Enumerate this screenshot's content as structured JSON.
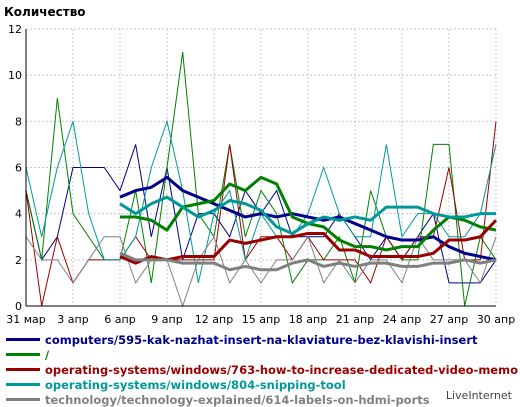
{
  "chart_data": {
    "type": "line",
    "ylabel": "Количество",
    "ylim": [
      0,
      12
    ],
    "yticks": [
      0,
      2,
      4,
      6,
      8,
      10,
      12
    ],
    "grid": true,
    "legend_position": "bottom",
    "x": [
      "31 мар",
      "1 апр",
      "2 апр",
      "3 апр",
      "4 апр",
      "5 апр",
      "6 апр",
      "7 апр",
      "8 апр",
      "9 апр",
      "10 апр",
      "11 апр",
      "12 апр",
      "13 апр",
      "14 апр",
      "15 апр",
      "16 апр",
      "17 апр",
      "18 апр",
      "19 апр",
      "20 апр",
      "21 апр",
      "22 апр",
      "23 апр",
      "24 апр",
      "25 апр",
      "26 апр",
      "27 апр",
      "28 апр",
      "29 апр",
      "30 апр"
    ],
    "xtick_labels": [
      "31 мар",
      "3 апр",
      "6 апр",
      "9 апр",
      "12 апр",
      "15 апр",
      "18 апр",
      "21 апр",
      "24 апр",
      "27 апр",
      "30 апр"
    ],
    "series": [
      {
        "name": "computers/595-kak-nazhat-insert-na-klaviature-bez-klavishi-insert",
        "color": "#00008b",
        "values": [
          5,
          2,
          3,
          6,
          6,
          6,
          5,
          7,
          3,
          6,
          2,
          4,
          4,
          3,
          5,
          4,
          5,
          3,
          3,
          3,
          4,
          3,
          2,
          3,
          2,
          3,
          4,
          1,
          1,
          1,
          2
        ]
      },
      {
        "name": "/",
        "color": "#008000",
        "values": [
          5,
          2,
          9,
          4,
          3,
          2,
          2,
          5,
          1,
          6,
          11,
          4,
          3,
          7,
          3,
          5,
          4,
          1,
          2,
          2,
          3,
          1,
          5,
          3,
          2,
          2,
          7,
          7,
          0,
          3,
          2
        ]
      },
      {
        "name": "operating-systems/windows/763-how-to-increase-dedicated-video-memory",
        "color": "#990000",
        "values": [
          5,
          0,
          3,
          1,
          2,
          2,
          2,
          3,
          2,
          2,
          2,
          2,
          2,
          7,
          2,
          3,
          3,
          2,
          3,
          2,
          2,
          2,
          1,
          3,
          2,
          3,
          3,
          6,
          2,
          2,
          8
        ]
      },
      {
        "name": "operating-systems/windows/804-snipping-tool",
        "color": "#009999",
        "values": [
          6,
          3,
          6,
          8,
          4,
          2,
          2,
          3,
          6,
          8,
          5,
          1,
          4,
          5,
          2,
          4,
          3,
          3,
          4,
          6,
          4,
          3,
          3,
          7,
          3,
          4,
          4,
          3,
          3,
          4,
          7
        ]
      },
      {
        "name": "technology/technology-explained/614-labels-on-hdmi-ports",
        "color": "#808080",
        "values": [
          3,
          2,
          2,
          1,
          2,
          3,
          3,
          1,
          2,
          2,
          0,
          2,
          3,
          1,
          2,
          1,
          2,
          2,
          3,
          1,
          2,
          1,
          2,
          2,
          1,
          3,
          2,
          2,
          2,
          1,
          3
        ]
      }
    ]
  },
  "brand": "LiveInternet"
}
